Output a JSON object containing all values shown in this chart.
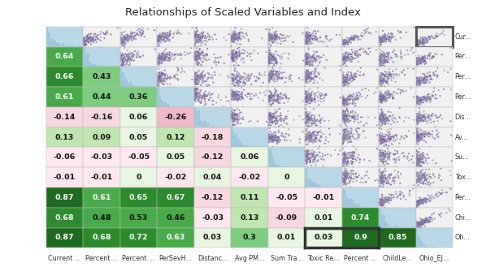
{
  "title": "Relationships of Scaled Variables and Index",
  "col_labels": [
    "Current ...",
    "Percent ...",
    "Percent ...",
    "PerSevH...",
    "Distanc...",
    "Avg PM...",
    "Sum Tra...",
    "Toxic Re...",
    "Percent ...",
    "ChildLe...",
    "Ohio_EJ..."
  ],
  "row_labels": [
    "Cur...",
    "Per...",
    "Per...",
    "Per...",
    "Dis...",
    "Av...",
    "Su...",
    "Tox...",
    "Per...",
    "Chi...",
    "Oh..."
  ],
  "corr_matrix": [
    [
      null,
      null,
      null,
      null,
      null,
      null,
      null,
      null,
      null,
      null,
      null
    ],
    [
      0.64,
      null,
      null,
      null,
      null,
      null,
      null,
      null,
      null,
      null,
      null
    ],
    [
      0.66,
      0.43,
      null,
      null,
      null,
      null,
      null,
      null,
      null,
      null,
      null
    ],
    [
      0.61,
      0.44,
      0.36,
      null,
      null,
      null,
      null,
      null,
      null,
      null,
      null
    ],
    [
      -0.14,
      -0.16,
      0.06,
      -0.26,
      null,
      null,
      null,
      null,
      null,
      null,
      null
    ],
    [
      0.13,
      0.09,
      0.05,
      0.12,
      -0.18,
      null,
      null,
      null,
      null,
      null,
      null
    ],
    [
      -0.06,
      -0.03,
      -0.05,
      0.05,
      -0.12,
      0.06,
      null,
      null,
      null,
      null,
      null
    ],
    [
      -0.01,
      -0.01,
      0.0,
      -0.02,
      0.04,
      -0.02,
      0.0,
      null,
      null,
      null,
      null
    ],
    [
      0.87,
      0.61,
      0.65,
      0.67,
      -0.12,
      0.11,
      -0.05,
      -0.01,
      null,
      null,
      null
    ],
    [
      0.68,
      0.48,
      0.53,
      0.46,
      -0.03,
      0.13,
      -0.09,
      0.01,
      0.74,
      null,
      null
    ],
    [
      0.87,
      0.68,
      0.72,
      0.63,
      0.03,
      0.3,
      0.01,
      0.03,
      0.9,
      0.85,
      null
    ]
  ],
  "n": 11,
  "background": "#ffffff",
  "hist_face_color": "#b8d8e8",
  "hist_bar_color": "#a0c8dc",
  "scatter_bg": "#f0f0f0",
  "scatter_purple": "#7b5ea7",
  "scatter_grey": "#9090a8",
  "title_fontsize": 9.5,
  "label_fontsize": 5.8,
  "val_fontsize": 6.8
}
